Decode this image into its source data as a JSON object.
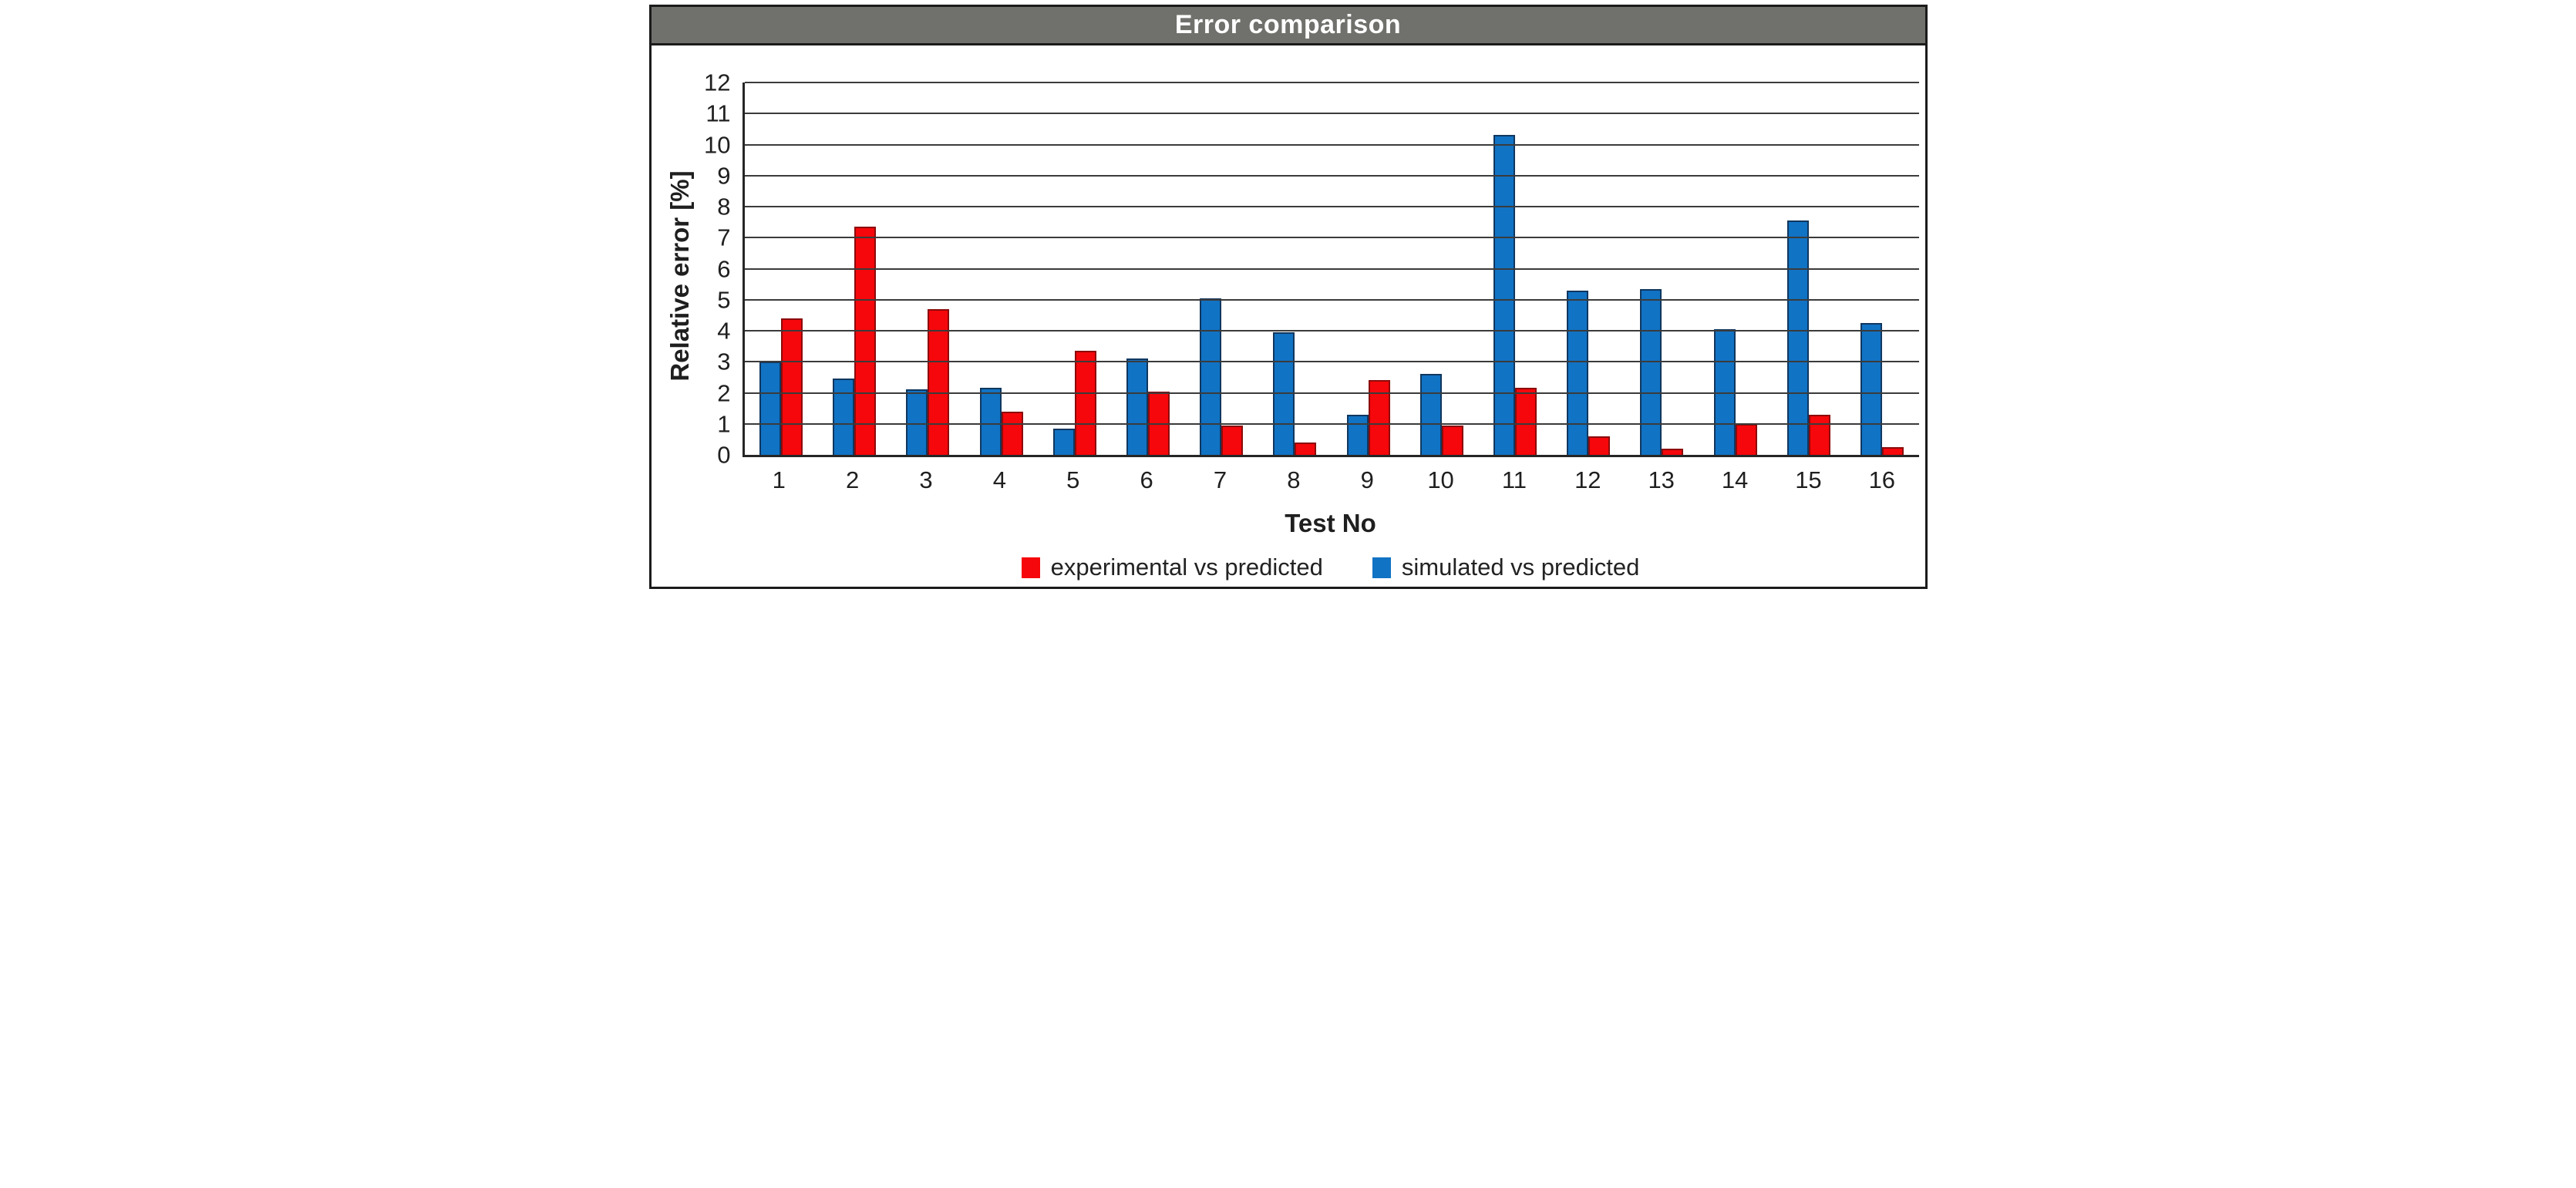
{
  "title_bar": {
    "text": "Error comparison",
    "bg": "#70706c",
    "text_color": "#ffffff"
  },
  "chart_data": {
    "type": "bar",
    "title": "Error comparison",
    "xlabel": "Test No",
    "ylabel": "Relative error [%]",
    "ylim": [
      0,
      12
    ],
    "ytick_step": 1,
    "grid": true,
    "legend_position": "bottom",
    "categories": [
      "1",
      "2",
      "3",
      "4",
      "5",
      "6",
      "7",
      "8",
      "9",
      "10",
      "11",
      "12",
      "13",
      "14",
      "15",
      "16"
    ],
    "series": [
      {
        "name": "experimental vs predicted",
        "color": "#f5070b",
        "edge": "#8c0b0b",
        "values": [
          4.4,
          7.35,
          4.7,
          1.4,
          3.35,
          2.05,
          0.95,
          0.4,
          2.4,
          0.95,
          2.15,
          0.6,
          0.2,
          1.0,
          1.3,
          0.25
        ]
      },
      {
        "name": "simulated vs predicted",
        "color": "#1173c4",
        "edge": "#10375f",
        "values": [
          3.0,
          2.45,
          2.1,
          2.15,
          0.85,
          3.1,
          5.05,
          3.95,
          1.3,
          2.6,
          10.3,
          5.3,
          5.35,
          4.05,
          7.55,
          4.25
        ]
      }
    ],
    "bar_draw_order": [
      1,
      0
    ],
    "gridline_color": "#3b3b3b",
    "axis_color": "#262626"
  }
}
